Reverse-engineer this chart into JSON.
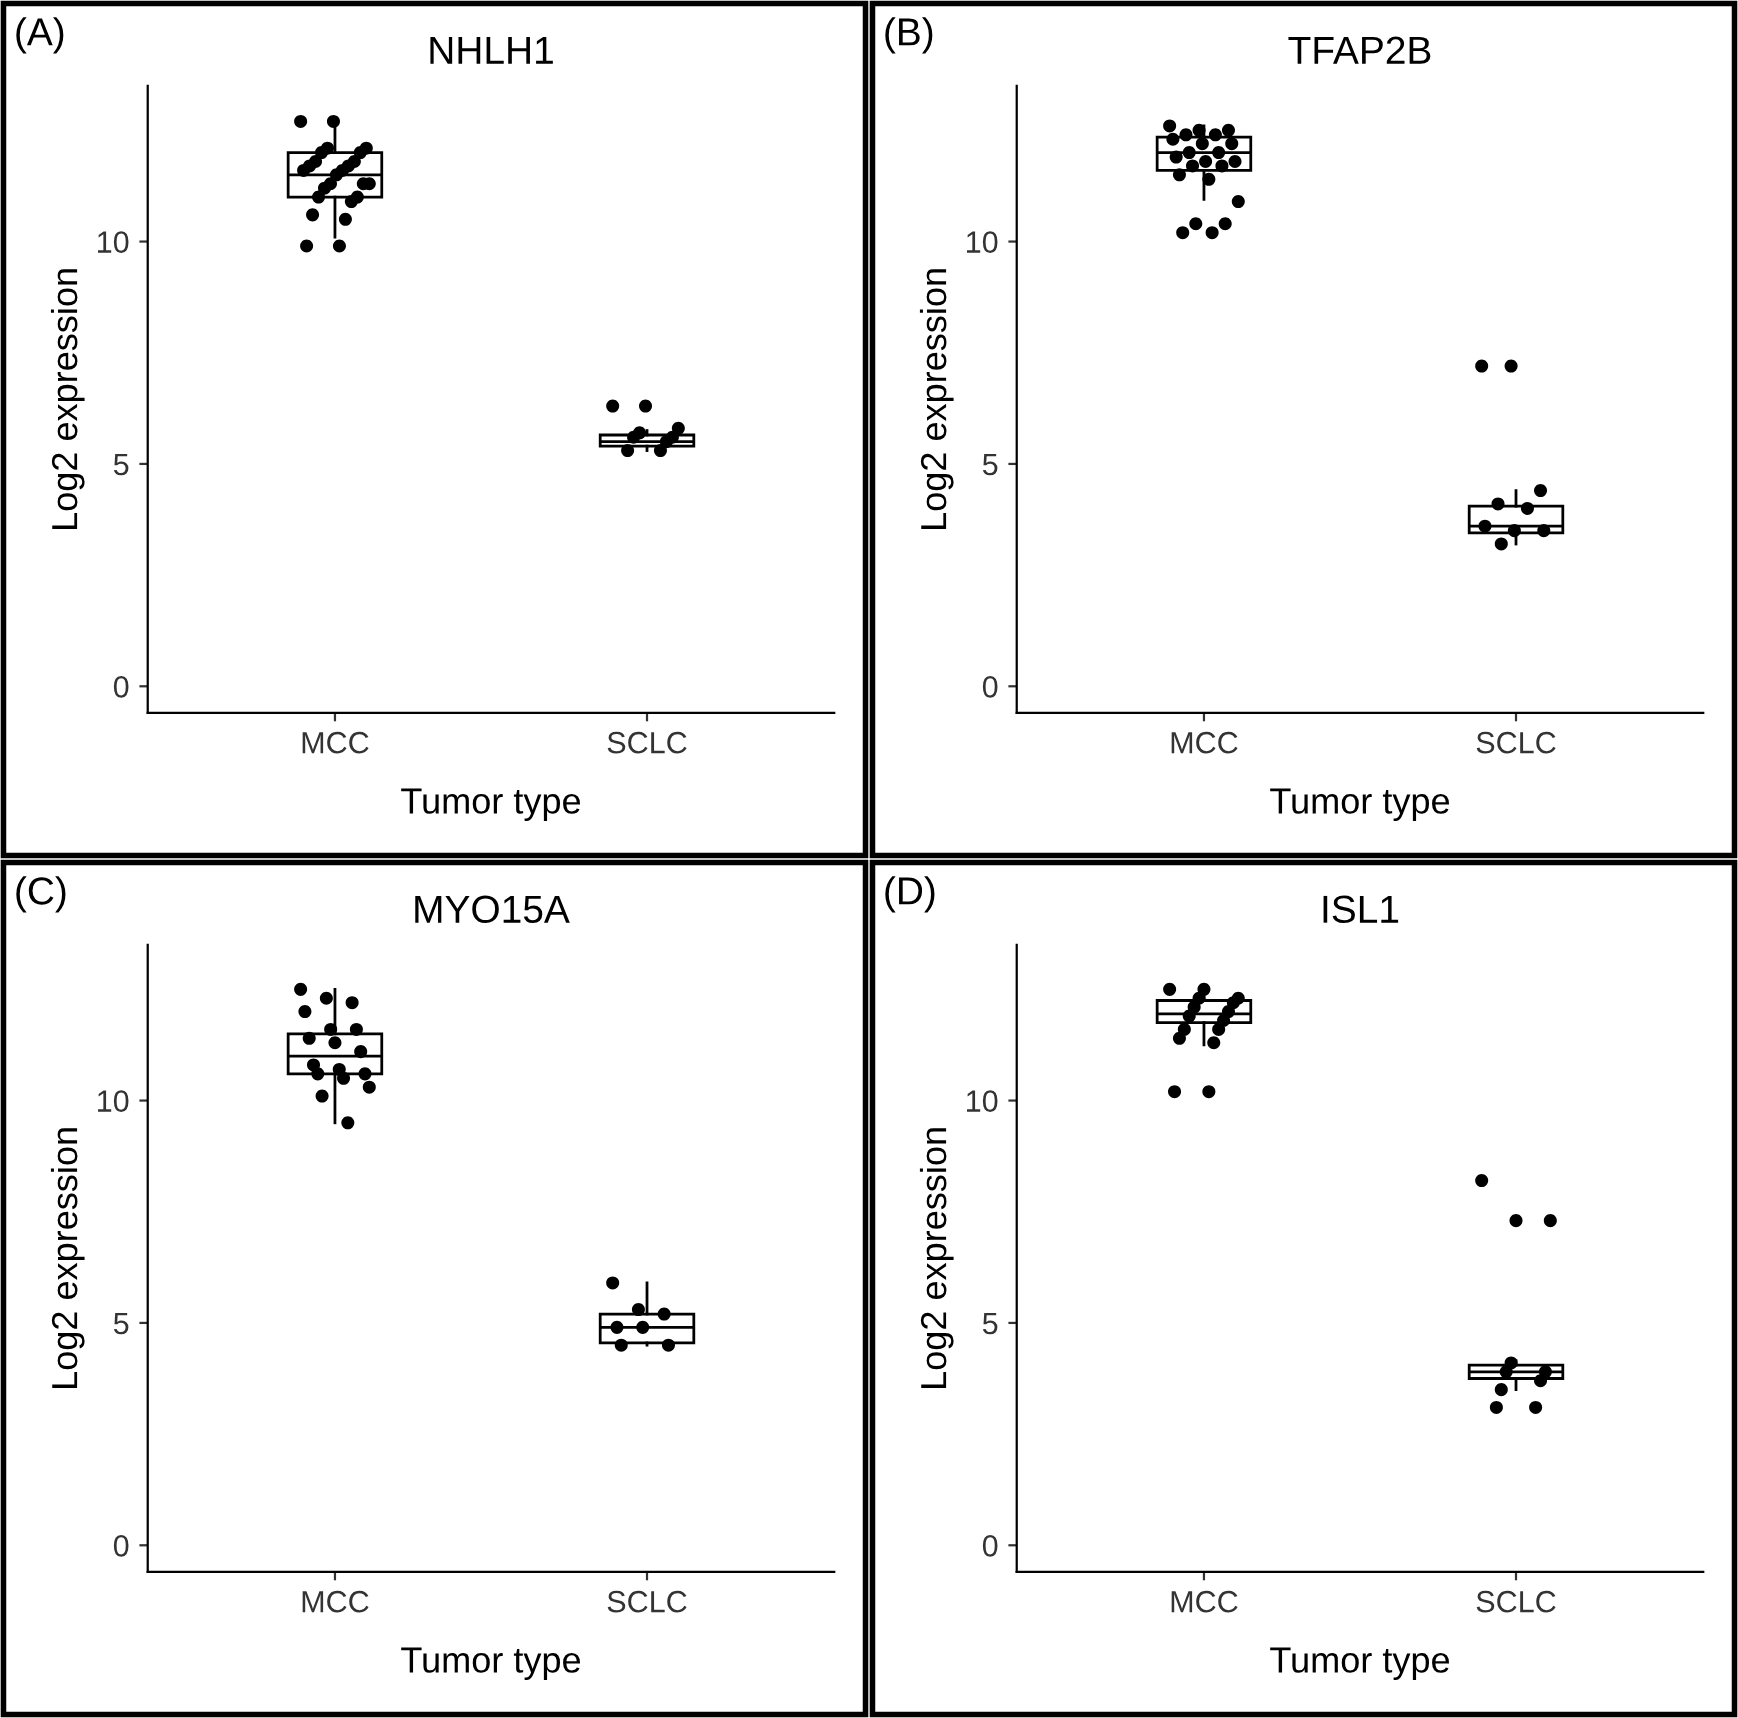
{
  "chart_data": [
    {
      "type": "box",
      "title": "NHLH1",
      "annotations": [
        "(A)"
      ],
      "xlabel": "Tumor type",
      "ylabel": "Log2 expression",
      "categories": [
        "MCC",
        "SCLC"
      ],
      "ylim": [
        -0.6,
        13.5
      ],
      "yticks": [
        0,
        5,
        10
      ],
      "grid": false,
      "boxes": [
        {
          "low": 10.1,
          "q1": 11.0,
          "median": 11.5,
          "q3": 12.0,
          "high": 12.7
        },
        {
          "low": 5.3,
          "q1": 5.4,
          "median": 5.5,
          "q3": 5.65,
          "high": 5.75
        }
      ],
      "series": [
        {
          "type": "scatter",
          "color": "#000000",
          "marker": "circle",
          "values": [
            12.7,
            6.3
          ]
        },
        {
          "type": "scatter",
          "color": "#000000",
          "marker": "circle",
          "values": [
            12.7,
            6.3
          ]
        },
        {
          "type": "scatter",
          "color": "#000000",
          "marker": "circle",
          "values": [
            12.1,
            5.8
          ]
        },
        {
          "type": "scatter",
          "color": "#000000",
          "marker": "circle",
          "values": [
            12.1,
            5.7
          ]
        },
        {
          "type": "scatter",
          "color": "#000000",
          "marker": "circle",
          "values": [
            12.0,
            5.6
          ]
        },
        {
          "type": "scatter",
          "color": "#000000",
          "marker": "circle",
          "values": [
            12.0,
            5.6
          ]
        },
        {
          "type": "scatter",
          "color": "#000000",
          "marker": "circle",
          "values": [
            11.8,
            5.5
          ]
        },
        {
          "type": "scatter",
          "color": "#000000",
          "marker": "circle",
          "values": [
            11.8,
            5.3
          ]
        },
        {
          "type": "scatter",
          "color": "#000000",
          "marker": "circle",
          "values": [
            11.7,
            5.3
          ]
        },
        {
          "type": "scatter",
          "color": "#000000",
          "marker": "circle",
          "values": [
            11.7,
            null
          ]
        },
        {
          "type": "scatter",
          "color": "#000000",
          "marker": "circle",
          "values": [
            11.6,
            null
          ]
        },
        {
          "type": "scatter",
          "color": "#000000",
          "marker": "circle",
          "values": [
            11.6,
            null
          ]
        },
        {
          "type": "scatter",
          "color": "#000000",
          "marker": "circle",
          "values": [
            11.5,
            null
          ]
        },
        {
          "type": "scatter",
          "color": "#000000",
          "marker": "circle",
          "values": [
            11.3,
            null
          ]
        },
        {
          "type": "scatter",
          "color": "#000000",
          "marker": "circle",
          "values": [
            11.3,
            null
          ]
        },
        {
          "type": "scatter",
          "color": "#000000",
          "marker": "circle",
          "values": [
            11.3,
            null
          ]
        },
        {
          "type": "scatter",
          "color": "#000000",
          "marker": "circle",
          "values": [
            11.2,
            null
          ]
        },
        {
          "type": "scatter",
          "color": "#000000",
          "marker": "circle",
          "values": [
            11.0,
            null
          ]
        },
        {
          "type": "scatter",
          "color": "#000000",
          "marker": "circle",
          "values": [
            11.0,
            null
          ]
        },
        {
          "type": "scatter",
          "color": "#000000",
          "marker": "circle",
          "values": [
            10.9,
            null
          ]
        },
        {
          "type": "scatter",
          "color": "#000000",
          "marker": "circle",
          "values": [
            10.6,
            null
          ]
        },
        {
          "type": "scatter",
          "color": "#000000",
          "marker": "circle",
          "values": [
            10.5,
            null
          ]
        },
        {
          "type": "scatter",
          "color": "#000000",
          "marker": "circle",
          "values": [
            9.9,
            null
          ]
        },
        {
          "type": "scatter",
          "color": "#000000",
          "marker": "circle",
          "values": [
            9.9,
            null
          ]
        }
      ]
    },
    {
      "type": "box",
      "title": "TFAP2B",
      "annotations": [
        "(B)"
      ],
      "xlabel": "Tumor type",
      "ylabel": "Log2 expression",
      "categories": [
        "MCC",
        "SCLC"
      ],
      "ylim": [
        -0.6,
        13.5
      ],
      "yticks": [
        0,
        5,
        10
      ],
      "grid": false,
      "boxes": [
        {
          "low": 10.95,
          "q1": 11.6,
          "median": 12.0,
          "q3": 12.35,
          "high": 12.6
        },
        {
          "low": 3.2,
          "q1": 3.45,
          "median": 3.6,
          "q3": 4.05,
          "high": 4.4
        }
      ],
      "series": [
        {
          "type": "scatter",
          "color": "#000000",
          "marker": "circle",
          "values": [
            12.6,
            7.2
          ]
        },
        {
          "type": "scatter",
          "color": "#000000",
          "marker": "circle",
          "values": [
            12.5,
            7.2
          ]
        },
        {
          "type": "scatter",
          "color": "#000000",
          "marker": "circle",
          "values": [
            12.5,
            4.4
          ]
        },
        {
          "type": "scatter",
          "color": "#000000",
          "marker": "circle",
          "values": [
            12.4,
            4.1
          ]
        },
        {
          "type": "scatter",
          "color": "#000000",
          "marker": "circle",
          "values": [
            12.4,
            4.0
          ]
        },
        {
          "type": "scatter",
          "color": "#000000",
          "marker": "circle",
          "values": [
            12.3,
            3.6
          ]
        },
        {
          "type": "scatter",
          "color": "#000000",
          "marker": "circle",
          "values": [
            12.2,
            3.5
          ]
        },
        {
          "type": "scatter",
          "color": "#000000",
          "marker": "circle",
          "values": [
            12.2,
            3.5
          ]
        },
        {
          "type": "scatter",
          "color": "#000000",
          "marker": "circle",
          "values": [
            12.0,
            3.2
          ]
        },
        {
          "type": "scatter",
          "color": "#000000",
          "marker": "circle",
          "values": [
            12.0,
            null
          ]
        },
        {
          "type": "scatter",
          "color": "#000000",
          "marker": "circle",
          "values": [
            11.9,
            null
          ]
        },
        {
          "type": "scatter",
          "color": "#000000",
          "marker": "circle",
          "values": [
            11.8,
            null
          ]
        },
        {
          "type": "scatter",
          "color": "#000000",
          "marker": "circle",
          "values": [
            11.8,
            null
          ]
        },
        {
          "type": "scatter",
          "color": "#000000",
          "marker": "circle",
          "values": [
            11.7,
            null
          ]
        },
        {
          "type": "scatter",
          "color": "#000000",
          "marker": "circle",
          "values": [
            11.7,
            null
          ]
        },
        {
          "type": "scatter",
          "color": "#000000",
          "marker": "circle",
          "values": [
            11.5,
            null
          ]
        },
        {
          "type": "scatter",
          "color": "#000000",
          "marker": "circle",
          "values": [
            11.4,
            null
          ]
        },
        {
          "type": "scatter",
          "color": "#000000",
          "marker": "circle",
          "values": [
            10.9,
            null
          ]
        },
        {
          "type": "scatter",
          "color": "#000000",
          "marker": "circle",
          "values": [
            10.4,
            null
          ]
        },
        {
          "type": "scatter",
          "color": "#000000",
          "marker": "circle",
          "values": [
            10.4,
            null
          ]
        },
        {
          "type": "scatter",
          "color": "#000000",
          "marker": "circle",
          "values": [
            10.2,
            null
          ]
        },
        {
          "type": "scatter",
          "color": "#000000",
          "marker": "circle",
          "values": [
            10.2,
            null
          ]
        }
      ]
    },
    {
      "type": "box",
      "title": "MYO15A",
      "annotations": [
        "(C)"
      ],
      "xlabel": "Tumor type",
      "ylabel": "Log2 expression",
      "categories": [
        "MCC",
        "SCLC"
      ],
      "ylim": [
        -0.6,
        13.5
      ],
      "yticks": [
        0,
        5,
        10
      ],
      "grid": false,
      "boxes": [
        {
          "low": 9.5,
          "q1": 10.6,
          "median": 11.0,
          "q3": 11.5,
          "high": 12.5
        },
        {
          "low": 4.5,
          "q1": 4.55,
          "median": 4.9,
          "q3": 5.2,
          "high": 5.9
        }
      ],
      "series": [
        {
          "type": "scatter",
          "color": "#000000",
          "marker": "circle",
          "values": [
            12.5,
            5.9
          ]
        },
        {
          "type": "scatter",
          "color": "#000000",
          "marker": "circle",
          "values": [
            12.3,
            5.3
          ]
        },
        {
          "type": "scatter",
          "color": "#000000",
          "marker": "circle",
          "values": [
            12.2,
            5.2
          ]
        },
        {
          "type": "scatter",
          "color": "#000000",
          "marker": "circle",
          "values": [
            12.0,
            4.9
          ]
        },
        {
          "type": "scatter",
          "color": "#000000",
          "marker": "circle",
          "values": [
            11.6,
            4.9
          ]
        },
        {
          "type": "scatter",
          "color": "#000000",
          "marker": "circle",
          "values": [
            11.6,
            4.5
          ]
        },
        {
          "type": "scatter",
          "color": "#000000",
          "marker": "circle",
          "values": [
            11.4,
            4.5
          ]
        },
        {
          "type": "scatter",
          "color": "#000000",
          "marker": "circle",
          "values": [
            11.3,
            null
          ]
        },
        {
          "type": "scatter",
          "color": "#000000",
          "marker": "circle",
          "values": [
            11.1,
            null
          ]
        },
        {
          "type": "scatter",
          "color": "#000000",
          "marker": "circle",
          "values": [
            10.8,
            null
          ]
        },
        {
          "type": "scatter",
          "color": "#000000",
          "marker": "circle",
          "values": [
            10.7,
            null
          ]
        },
        {
          "type": "scatter",
          "color": "#000000",
          "marker": "circle",
          "values": [
            10.6,
            null
          ]
        },
        {
          "type": "scatter",
          "color": "#000000",
          "marker": "circle",
          "values": [
            10.6,
            null
          ]
        },
        {
          "type": "scatter",
          "color": "#000000",
          "marker": "circle",
          "values": [
            10.5,
            null
          ]
        },
        {
          "type": "scatter",
          "color": "#000000",
          "marker": "circle",
          "values": [
            10.3,
            null
          ]
        },
        {
          "type": "scatter",
          "color": "#000000",
          "marker": "circle",
          "values": [
            10.1,
            null
          ]
        },
        {
          "type": "scatter",
          "color": "#000000",
          "marker": "circle",
          "values": [
            9.5,
            null
          ]
        }
      ]
    },
    {
      "type": "box",
      "title": "ISL1",
      "annotations": [
        "(D)"
      ],
      "xlabel": "Tumor type",
      "ylabel": "Log2 expression",
      "categories": [
        "MCC",
        "SCLC"
      ],
      "ylim": [
        -0.6,
        13.5
      ],
      "yticks": [
        0,
        5,
        10
      ],
      "grid": false,
      "boxes": [
        {
          "low": 11.25,
          "q1": 11.75,
          "median": 11.95,
          "q3": 12.25,
          "high": 12.6
        },
        {
          "low": 3.5,
          "q1": 3.75,
          "median": 3.9,
          "q3": 4.05,
          "high": 4.15
        }
      ],
      "series": [
        {
          "type": "scatter",
          "color": "#000000",
          "marker": "circle",
          "values": [
            12.5,
            8.2
          ]
        },
        {
          "type": "scatter",
          "color": "#000000",
          "marker": "circle",
          "values": [
            12.5,
            7.3
          ]
        },
        {
          "type": "scatter",
          "color": "#000000",
          "marker": "circle",
          "values": [
            12.3,
            7.3
          ]
        },
        {
          "type": "scatter",
          "color": "#000000",
          "marker": "circle",
          "values": [
            12.3,
            4.1
          ]
        },
        {
          "type": "scatter",
          "color": "#000000",
          "marker": "circle",
          "values": [
            12.2,
            3.9
          ]
        },
        {
          "type": "scatter",
          "color": "#000000",
          "marker": "circle",
          "values": [
            12.1,
            3.9
          ]
        },
        {
          "type": "scatter",
          "color": "#000000",
          "marker": "circle",
          "values": [
            12.0,
            3.7
          ]
        },
        {
          "type": "scatter",
          "color": "#000000",
          "marker": "circle",
          "values": [
            11.9,
            3.5
          ]
        },
        {
          "type": "scatter",
          "color": "#000000",
          "marker": "circle",
          "values": [
            11.8,
            3.1
          ]
        },
        {
          "type": "scatter",
          "color": "#000000",
          "marker": "circle",
          "values": [
            11.6,
            3.1
          ]
        },
        {
          "type": "scatter",
          "color": "#000000",
          "marker": "circle",
          "values": [
            11.6,
            null
          ]
        },
        {
          "type": "scatter",
          "color": "#000000",
          "marker": "circle",
          "values": [
            11.4,
            null
          ]
        },
        {
          "type": "scatter",
          "color": "#000000",
          "marker": "circle",
          "values": [
            11.3,
            null
          ]
        },
        {
          "type": "scatter",
          "color": "#000000",
          "marker": "circle",
          "values": [
            10.2,
            null
          ]
        },
        {
          "type": "scatter",
          "color": "#000000",
          "marker": "circle",
          "values": [
            10.2,
            null
          ]
        }
      ]
    }
  ]
}
